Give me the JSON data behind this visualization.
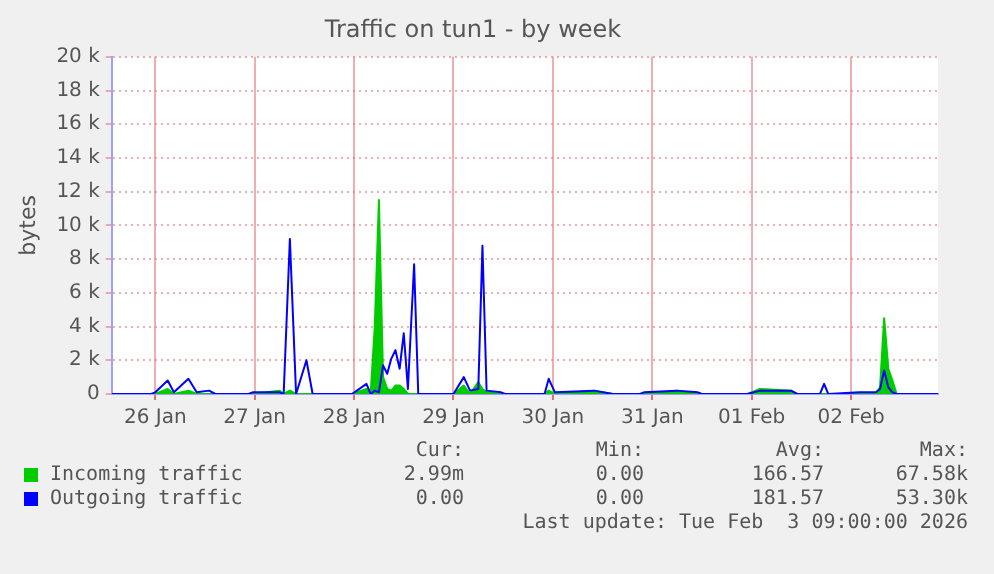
{
  "chart_data": {
    "type": "line",
    "title": "Traffic on tun1 - by week",
    "ylabel": "bytes",
    "x": [
      "2026-01-26T01:30",
      "2026-01-26T11:00",
      "2026-01-26T12:00",
      "2026-01-26T15:00",
      "2026-01-26T16:30",
      "2026-01-26T20:00",
      "2026-01-26T22:00",
      "2026-01-27T01:00",
      "2026-01-27T02:30",
      "2026-01-27T10:30",
      "2026-01-27T11:30",
      "2026-01-27T18:00",
      "2026-01-27T19:00",
      "2026-01-27T20:30",
      "2026-01-27T22:00",
      "2026-01-28T00:30",
      "2026-01-28T02:00",
      "2026-01-28T11:30",
      "2026-01-28T15:00",
      "2026-01-28T16:00",
      "2026-01-28T17:00",
      "2026-01-28T18:00",
      "2026-01-28T19:00",
      "2026-01-28T20:00",
      "2026-01-28T21:00",
      "2026-01-28T22:00",
      "2026-01-28T23:00",
      "2026-01-29T00:00",
      "2026-01-29T01:00",
      "2026-01-29T02:30",
      "2026-01-29T03:30",
      "2026-01-29T12:00",
      "2026-01-29T14:30",
      "2026-01-29T16:00",
      "2026-01-29T18:00",
      "2026-01-29T19:00",
      "2026-01-29T20:00",
      "2026-01-29T23:30",
      "2026-01-30T00:30",
      "2026-01-30T10:00",
      "2026-01-30T11:00",
      "2026-01-30T12:30",
      "2026-01-30T22:00",
      "2026-01-31T02:30",
      "2026-01-31T09:00",
      "2026-01-31T10:00",
      "2026-01-31T18:00",
      "2026-01-31T23:00",
      "2026-02-01T00:00",
      "2026-02-01T11:00",
      "2026-02-01T14:00",
      "2026-02-01T21:30",
      "2026-02-01T23:00",
      "2026-02-02T04:30",
      "2026-02-02T05:30",
      "2026-02-02T06:30",
      "2026-02-02T14:00",
      "2026-02-02T18:00",
      "2026-02-02T19:00",
      "2026-02-02T20:00",
      "2026-02-02T21:00",
      "2026-02-02T22:00",
      "2026-02-02T23:00",
      "2026-02-03T09:00"
    ],
    "series": [
      {
        "name": "Incoming traffic",
        "type": "area",
        "color": "#00cc00",
        "values": [
          0,
          0,
          0,
          300,
          0,
          200,
          0,
          0,
          0,
          0,
          0,
          200,
          0,
          200,
          0,
          0,
          0,
          0,
          300,
          0,
          4000,
          11500,
          1000,
          300,
          200,
          500,
          500,
          300,
          0,
          0,
          0,
          0,
          500,
          0,
          700,
          300,
          100,
          0,
          0,
          0,
          200,
          0,
          200,
          0,
          0,
          0,
          200,
          0,
          0,
          0,
          300,
          200,
          0,
          0,
          0,
          0,
          0,
          0,
          400,
          4500,
          1500,
          800,
          0,
          0
        ]
      },
      {
        "name": "Outgoing traffic",
        "type": "line",
        "color": "#0000ff",
        "values": [
          0,
          0,
          100,
          800,
          100,
          900,
          100,
          200,
          0,
          0,
          100,
          100,
          0,
          9200,
          0,
          2000,
          0,
          0,
          600,
          0,
          200,
          100,
          1700,
          1200,
          2100,
          2600,
          1500,
          3600,
          300,
          7700,
          0,
          0,
          1000,
          200,
          300,
          8800,
          200,
          100,
          0,
          0,
          900,
          100,
          200,
          0,
          0,
          100,
          200,
          100,
          0,
          0,
          200,
          200,
          0,
          0,
          600,
          0,
          100,
          100,
          300,
          1400,
          400,
          100,
          0,
          0
        ]
      }
    ],
    "xlim": [
      "2026-01-26T01:30",
      "2026-02-03T09:00"
    ],
    "xticks": [
      {
        "value": "2026-01-26T12:00",
        "label": "26 Jan"
      },
      {
        "value": "2026-01-27T12:00",
        "label": "27 Jan"
      },
      {
        "value": "2026-01-28T12:00",
        "label": "28 Jan"
      },
      {
        "value": "2026-01-29T12:00",
        "label": "29 Jan"
      },
      {
        "value": "2026-01-30T12:00",
        "label": "30 Jan"
      },
      {
        "value": "2026-01-31T12:00",
        "label": "31 Jan"
      },
      {
        "value": "2026-02-01T12:00",
        "label": "01 Feb"
      },
      {
        "value": "2026-02-02T12:00",
        "label": "02 Feb"
      }
    ],
    "ylim": [
      0,
      20000
    ],
    "yticks": [
      0,
      {
        "value": 2000,
        "label": "2 k"
      },
      {
        "value": 4000,
        "label": "4 k"
      },
      {
        "value": 6000,
        "label": "6 k"
      },
      {
        "value": 8000,
        "label": "8 k"
      },
      {
        "value": 10000,
        "label": "10 k"
      },
      {
        "value": 12000,
        "label": "12 k"
      },
      {
        "value": 14000,
        "label": "14 k"
      },
      {
        "value": 16000,
        "label": "16 k"
      },
      {
        "value": 18000,
        "label": "18 k"
      },
      {
        "value": 20000,
        "label": "20 k"
      }
    ],
    "grid": true,
    "legend": "bottom",
    "marker": "none",
    "annotations": [
      "Cur:",
      "Min:",
      "Avg:",
      "Max:",
      "2.99m",
      "0.00",
      "166.57",
      "67.58k",
      "0.00",
      "0.00",
      "181.57",
      "53.30k",
      "Last update: Tue Feb  3 09:00:00 2026"
    ]
  }
}
